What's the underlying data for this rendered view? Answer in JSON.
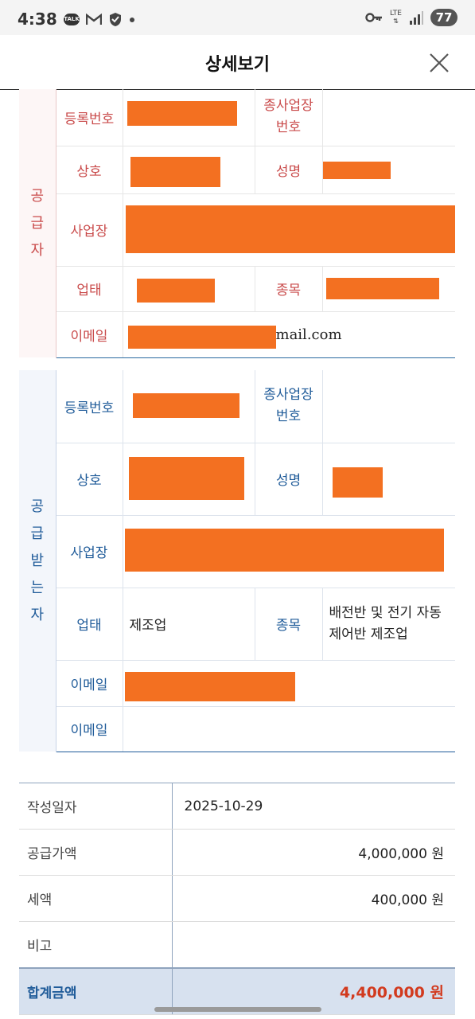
{
  "status_bar": {
    "time": "4:38",
    "talk_label": "TALK",
    "network_label": "LTE",
    "battery_level": "77",
    "icons": [
      "talk-icon",
      "gmail-icon",
      "shield-icon",
      "dot-icon",
      "vpn-key-icon",
      "lte-icon",
      "signal-icon",
      "battery-icon"
    ]
  },
  "header": {
    "title": "상세보기",
    "close_icon": "close-icon"
  },
  "supplier": {
    "side_label": [
      "공",
      "급",
      "자"
    ],
    "rows": {
      "reg_no": "등록번호",
      "sub_no": [
        "종사업장",
        "번호"
      ],
      "company": "상호",
      "name": "성명",
      "address": "사업장",
      "biz_type": "업태",
      "biz_item": "종목",
      "email": "이메일"
    },
    "values": {
      "email_suffix": "mail.com"
    }
  },
  "buyer": {
    "side_label": [
      "공",
      "급",
      "받",
      "는",
      "자"
    ],
    "rows": {
      "reg_no": "등록번호",
      "sub_no": [
        "종사업장",
        "번호"
      ],
      "company": "상호",
      "name": "성명",
      "address": "사업장",
      "biz_type": "업태",
      "biz_item": "종목",
      "email1": "이메일",
      "email2": "이메일"
    },
    "values": {
      "biz_type": "제조업",
      "biz_item": [
        "배전반 및 전기 자동",
        "제어반 제조업"
      ]
    }
  },
  "summary": {
    "date_label": "작성일자",
    "date": "2025-10-29",
    "supply_label": "공급가액",
    "supply": "4,000,000 원",
    "tax_label": "세액",
    "tax": "400,000 원",
    "memo_label": "비고",
    "memo": "",
    "total_label": "합계금액",
    "total": "4,400,000 원"
  },
  "colors": {
    "supplier_accent": "#c94a4a",
    "buyer_accent": "#1f5b99",
    "redaction": "#f37021",
    "total_amount": "#d23a1e"
  }
}
